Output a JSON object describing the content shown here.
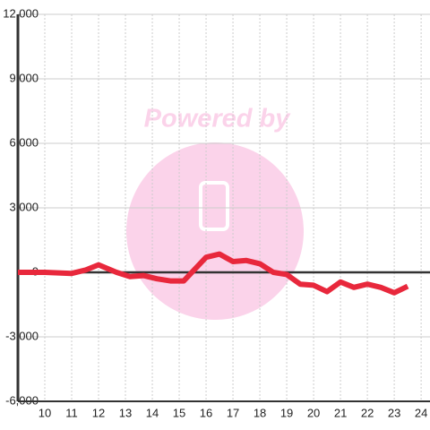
{
  "chart_data": {
    "type": "line",
    "watermark": "Powered by",
    "x": [
      9,
      10,
      11,
      11.5,
      12,
      12.67,
      13.17,
      13.67,
      14.17,
      14.67,
      15.17,
      16,
      16.5,
      17,
      17.5,
      18,
      18.5,
      19,
      19.5,
      20,
      20.5,
      21,
      21.5,
      22,
      22.5,
      23,
      23.5
    ],
    "series": [
      {
        "color": "#e8283c",
        "values": [
          0,
          0,
          -50,
          100,
          350,
          0,
          -200,
          -150,
          -300,
          -400,
          -400,
          700,
          850,
          500,
          550,
          400,
          0,
          -100,
          -550,
          -600,
          -900,
          -450,
          -700,
          -550,
          -700,
          -950,
          -650
        ]
      }
    ],
    "xlim": [
      9,
      24.33
    ],
    "xticks": [
      10,
      11,
      12,
      13,
      14,
      15,
      16,
      17,
      18,
      19,
      20,
      21,
      22,
      23,
      24
    ],
    "ylim": [
      -6000,
      12000
    ],
    "yticks": [
      {
        "value": -6000,
        "label": "-6,000"
      },
      {
        "value": -3000,
        "label": "-3,000"
      },
      0,
      {
        "value": 3000,
        "label": "3,000"
      },
      {
        "value": 6000,
        "label": "6,000"
      },
      {
        "value": 9000,
        "label": "9,000"
      },
      {
        "value": 12000,
        "label": "12,000"
      }
    ],
    "grid": true
  }
}
